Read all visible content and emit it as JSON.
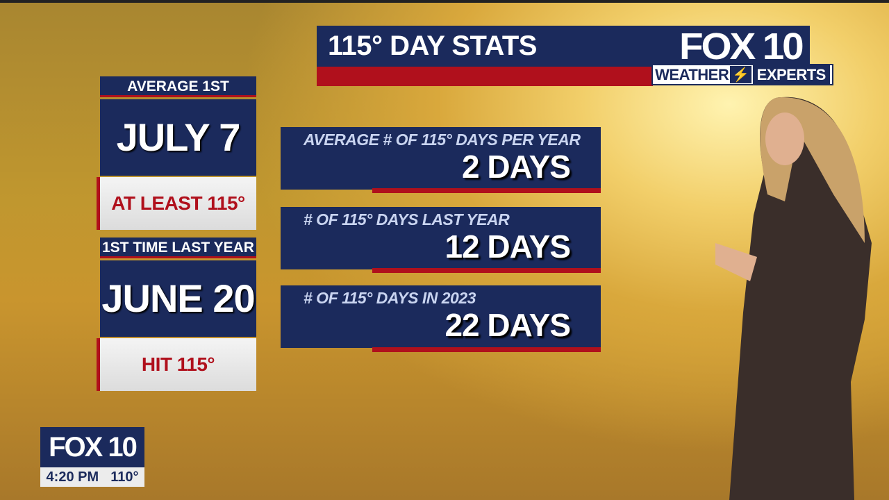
{
  "header": {
    "title": "115° DAY STATS",
    "logo": {
      "brand": "FOX 10",
      "tagline_left": "WEATHER",
      "tagline_right": "EXPERTS"
    }
  },
  "left_cards": [
    {
      "header": "AVERAGE 1ST",
      "date": "JULY 7",
      "footer": "AT LEAST 115°"
    },
    {
      "header": "1ST TIME LAST YEAR",
      "date": "JUNE 20",
      "footer": "HIT 115°"
    }
  ],
  "stats": [
    {
      "label": "AVERAGE # OF 115° DAYS PER YEAR",
      "value": "2 DAYS"
    },
    {
      "label": "# OF 115° DAYS LAST YEAR",
      "value": "12 DAYS"
    },
    {
      "label": "# OF 115° DAYS IN 2023",
      "value": "22 DAYS"
    }
  ],
  "station_bug": {
    "brand": "FOX 10",
    "time": "4:20 PM",
    "temperature": "110°"
  },
  "colors": {
    "navy": "#1b2a5c",
    "red": "#b0101c",
    "background": "#d9a83c"
  }
}
